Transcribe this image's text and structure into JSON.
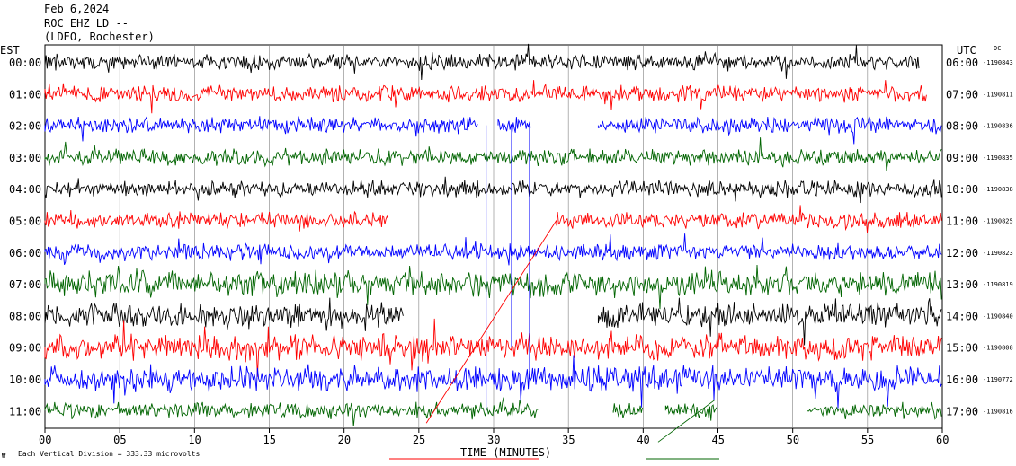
{
  "header": {
    "line1": "Feb 6,2024",
    "line2": "ROC EHZ LD --",
    "line3": "(LDEO, Rochester)"
  },
  "left_axis_title": "EST",
  "right_axis_title": "UTC",
  "dc_label": "DC",
  "footer_note": "Each Vertical Division =  333.33 microvolts",
  "chart_data": {
    "type": "line",
    "xlabel": "TIME (MINUTES)",
    "xlim": [
      0,
      60
    ],
    "x_ticks": [
      "00",
      "05",
      "10",
      "15",
      "20",
      "25",
      "30",
      "35",
      "40",
      "45",
      "50",
      "55",
      "60"
    ],
    "grid": "vertical lines every 5 minutes",
    "colors": [
      "#000000",
      "#ff0000",
      "#0000ff",
      "#006400"
    ],
    "rows": [
      {
        "est": "00:00",
        "utc": "06:00",
        "dc": "-1190843",
        "color": "#000000",
        "segments": [
          [
            0,
            58.5
          ]
        ]
      },
      {
        "est": "01:00",
        "utc": "07:00",
        "dc": "-1190811",
        "color": "#ff0000",
        "segments": [
          [
            0,
            59
          ]
        ]
      },
      {
        "est": "02:00",
        "utc": "08:00",
        "dc": "-1190836",
        "color": "#0000ff",
        "segments": [
          [
            0,
            29
          ],
          [
            30.3,
            32.5
          ],
          [
            37,
            60
          ]
        ]
      },
      {
        "est": "03:00",
        "utc": "09:00",
        "dc": "-1190835",
        "color": "#006400",
        "segments": [
          [
            0,
            60
          ]
        ]
      },
      {
        "est": "04:00",
        "utc": "10:00",
        "dc": "-1190838",
        "color": "#000000",
        "segments": [
          [
            0,
            60
          ]
        ]
      },
      {
        "est": "05:00",
        "utc": "11:00",
        "dc": "-1190825",
        "color": "#ff0000",
        "segments": [
          [
            0,
            23
          ],
          [
            34.2,
            60
          ]
        ]
      },
      {
        "est": "06:00",
        "utc": "12:00",
        "dc": "-1190823",
        "color": "#0000ff",
        "segments": [
          [
            0,
            60
          ]
        ]
      },
      {
        "est": "07:00",
        "utc": "13:00",
        "dc": "-1190819",
        "color": "#006400",
        "segments": [
          [
            0,
            60
          ]
        ]
      },
      {
        "est": "08:00",
        "utc": "14:00",
        "dc": "-1190840",
        "color": "#000000",
        "segments": [
          [
            0,
            24
          ],
          [
            37,
            60
          ]
        ]
      },
      {
        "est": "09:00",
        "utc": "15:00",
        "dc": "-1190808",
        "color": "#ff0000",
        "segments": [
          [
            0,
            60
          ]
        ]
      },
      {
        "est": "10:00",
        "utc": "16:00",
        "dc": "-1190772",
        "color": "#0000ff",
        "segments": [
          [
            0,
            60
          ]
        ]
      },
      {
        "est": "11:00",
        "utc": "17:00",
        "dc": "-1190816",
        "color": "#006400",
        "segments": [
          [
            0,
            33
          ],
          [
            38,
            40
          ],
          [
            41.5,
            45
          ],
          [
            51,
            60
          ]
        ]
      }
    ]
  }
}
